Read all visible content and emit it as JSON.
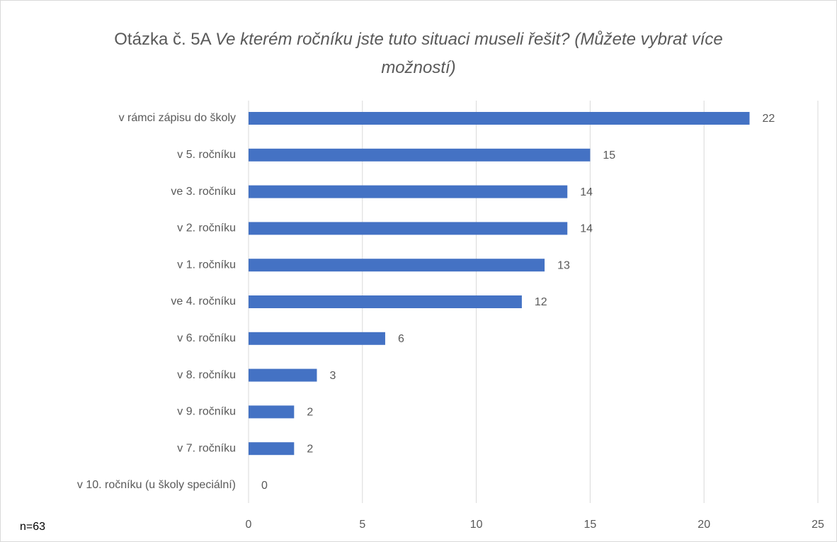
{
  "chart_data": {
    "type": "bar",
    "orientation": "horizontal",
    "title": "Otázka č. 5A",
    "title_question": "Ve kterém ročníku jste tuto situaci museli řešit? (Můžete vybrat více možností)",
    "annotation": "n=63",
    "categories": [
      "v rámci zápisu do školy",
      "v 5. ročníku",
      "ve 3. ročníku",
      "v 2. ročníku",
      "v 1. ročníku",
      "ve 4. ročníku",
      "v 6. ročníku",
      "v 8. ročníku",
      "v 9. ročníku",
      "v 7. ročníku",
      "v 10. ročníku (u školy speciální)"
    ],
    "values": [
      22,
      15,
      14,
      14,
      13,
      12,
      6,
      3,
      2,
      2,
      0
    ],
    "color": "#4472c4",
    "xlim": [
      0,
      25
    ],
    "xticks": [
      0,
      5,
      10,
      15,
      20,
      25
    ],
    "grid": true
  }
}
